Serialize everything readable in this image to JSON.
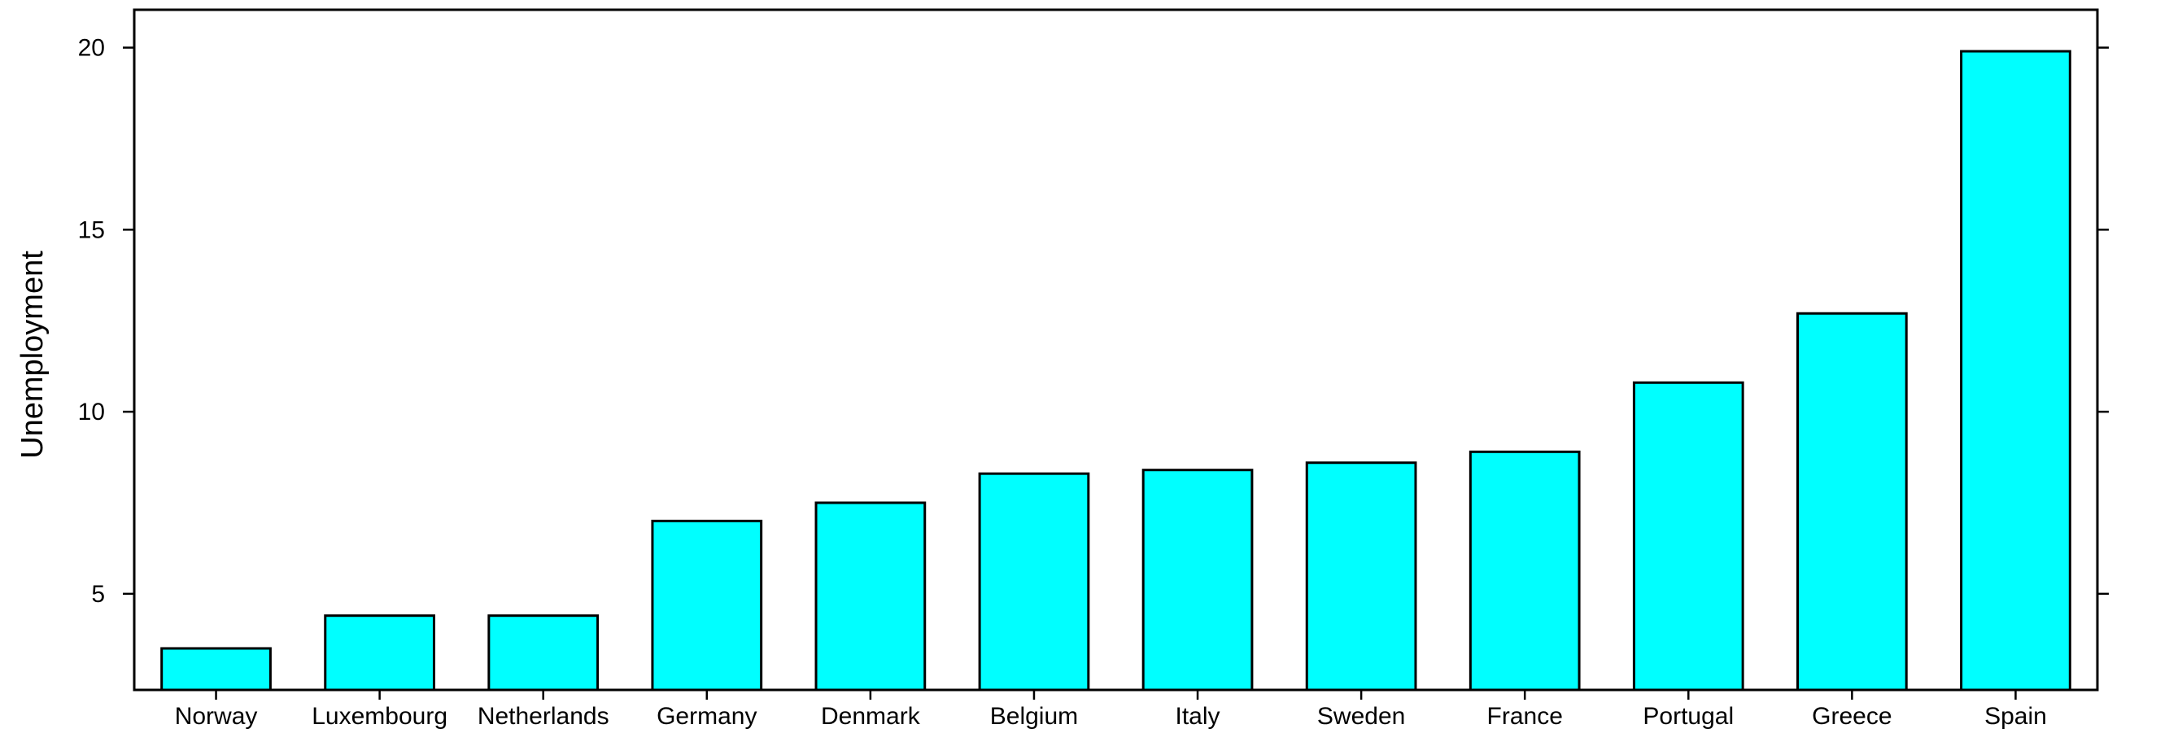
{
  "chart_data": {
    "type": "bar",
    "title": "",
    "xlabel": "",
    "ylabel": "Unemployment",
    "categories": [
      "Norway",
      "Luxembourg",
      "Netherlands",
      "Germany",
      "Denmark",
      "Belgium",
      "Italy",
      "Sweden",
      "France",
      "Portugal",
      "Greece",
      "Spain"
    ],
    "values": [
      3.5,
      4.4,
      4.4,
      7.0,
      7.5,
      8.3,
      8.4,
      8.6,
      8.9,
      10.8,
      12.7,
      19.9
    ],
    "ylim": [
      2.36,
      21.04
    ],
    "yticks": [
      5,
      10,
      15,
      20
    ],
    "grid": false,
    "bar_color": "#00FFFF",
    "bar_edge_color": "#000000"
  }
}
